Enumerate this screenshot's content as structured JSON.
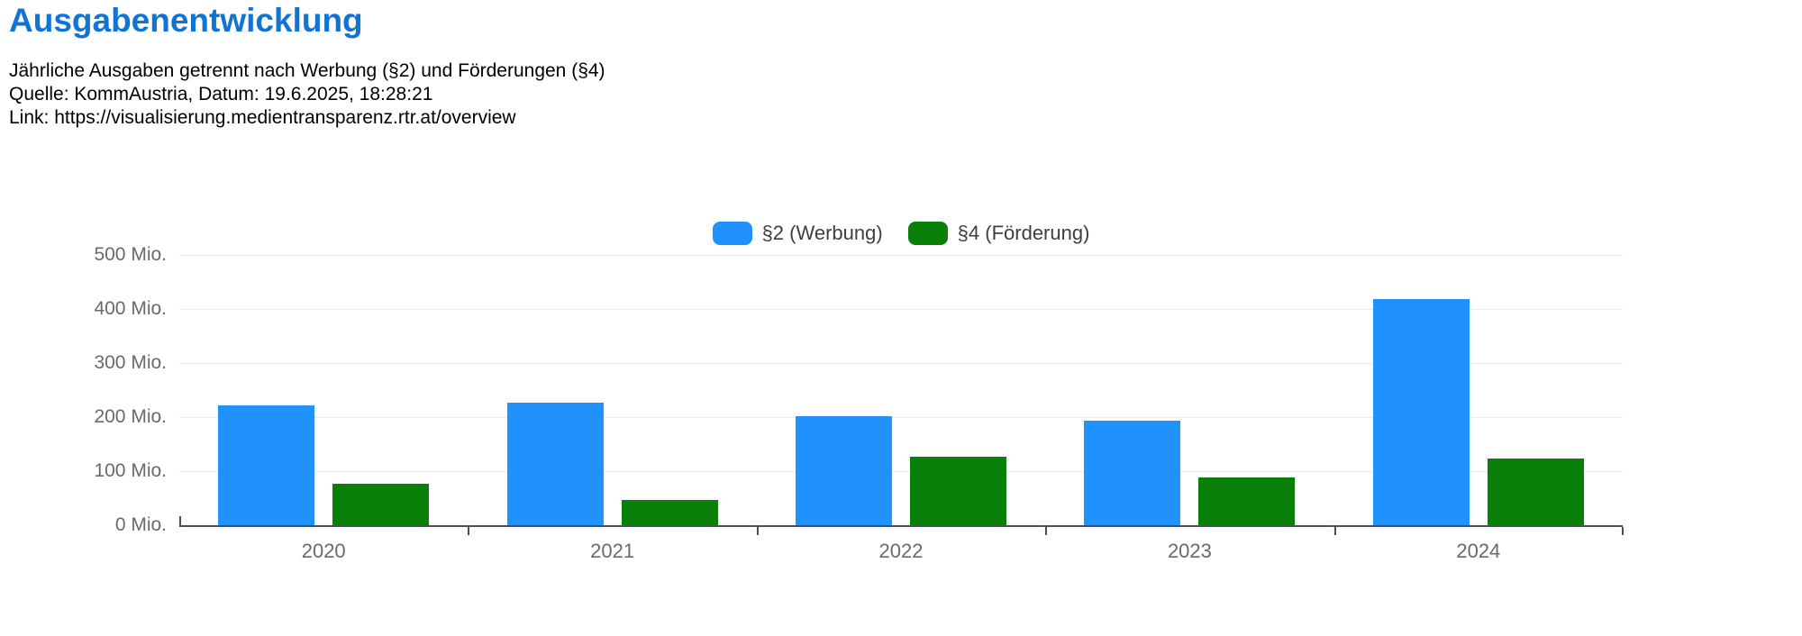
{
  "header": {
    "title": "Ausgabenentwicklung",
    "subtitle_line1": "Jährliche Ausgaben getrennt nach Werbung (§2) und Förderungen (§4)",
    "subtitle_line2": "Quelle: KommAustria, Datum: 19.6.2025, 18:28:21",
    "subtitle_line3": "Link: https://visualisierung.medientransparenz.rtr.at/overview"
  },
  "colors": {
    "title_blue": "#1173d4",
    "series_s2_blue": "#2191fb",
    "series_s4_green": "#0a800a",
    "gridline": "#e6ebf5",
    "axis": "#4a4e57",
    "tick_label": "#666a70",
    "legend_text": "#3c4043"
  },
  "chart_data": {
    "type": "bar",
    "title": "Ausgabenentwicklung",
    "categories": [
      "2020",
      "2021",
      "2022",
      "2023",
      "2024"
    ],
    "series": [
      {
        "name": "§2 (Werbung)",
        "color": "#2191fb",
        "values": [
          222,
          227,
          202,
          193,
          418
        ]
      },
      {
        "name": "§4 (Förderung)",
        "color": "#0a800a",
        "values": [
          77,
          46,
          126,
          88,
          124
        ]
      }
    ],
    "unit": "Mio.",
    "xlabel": "",
    "ylabel": "",
    "ylim": [
      0,
      500
    ],
    "y_ticks": [
      "500 Mio.",
      "400 Mio.",
      "300 Mio.",
      "200 Mio.",
      "100 Mio.",
      "0 Mio."
    ],
    "grid": true,
    "legend_position": "top-center"
  }
}
